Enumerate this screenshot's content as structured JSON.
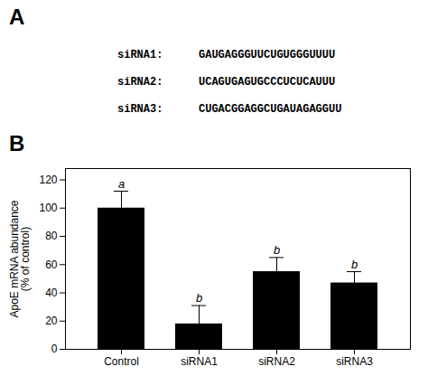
{
  "chart_data": {
    "type": "bar",
    "panel_labels": [
      "A",
      "B"
    ],
    "sequences": [
      {
        "label": "siRNA1:",
        "seq": "GAUGAGGGUUCUGUGGGUUUU"
      },
      {
        "label": "siRNA2:",
        "seq": "UCAGUGAGUGCCCUCUCAUUU"
      },
      {
        "label": "siRNA3:",
        "seq": "CUGACGGAGGCUGAUAGAGGUU"
      }
    ],
    "categories": [
      "Control",
      "siRNA1",
      "siRNA2",
      "siRNA3"
    ],
    "values": [
      100,
      18,
      55,
      47
    ],
    "errors": [
      12,
      13,
      10,
      8
    ],
    "stat_labels": [
      "a",
      "b",
      "b",
      "b"
    ],
    "color": "#000000",
    "ylabel": "ApoE mRNA abundance\n(% of control)",
    "ylim": [
      0,
      128
    ],
    "yticks": [
      0,
      20,
      40,
      60,
      80,
      100,
      120
    ]
  }
}
